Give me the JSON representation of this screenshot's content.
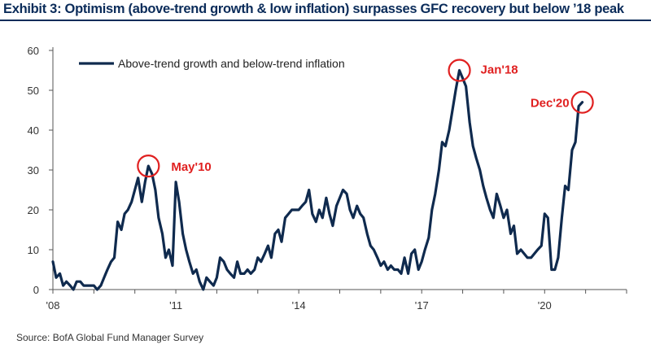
{
  "header": {
    "title": "Exhibit 3: Optimism (above-trend growth & low inflation) surpasses GFC recovery but below ’18 peak"
  },
  "footer": {
    "source": "Source: BofA Global Fund Manager Survey"
  },
  "colors": {
    "title": "#0b2c5a",
    "series": "#0f2a4e",
    "annotation": "#e02020",
    "axis": "#555555"
  },
  "chart_data": {
    "type": "line",
    "title": "Exhibit 3: Optimism (above-trend growth & low inflation) surpasses GFC recovery but below ’18 peak",
    "xlabel": "",
    "ylabel": "",
    "ylim": [
      0,
      60
    ],
    "xlim": [
      2008.0,
      2022.0
    ],
    "yticks": [
      0,
      10,
      20,
      30,
      40,
      50,
      60
    ],
    "xticks": [
      {
        "value": 2008,
        "label": "'08"
      },
      {
        "value": 2011,
        "label": "'11"
      },
      {
        "value": 2014,
        "label": "'14"
      },
      {
        "value": 2017,
        "label": "'17"
      },
      {
        "value": 2020,
        "label": "'20"
      }
    ],
    "legend": {
      "position": "top-left",
      "entries": [
        "Above-trend growth and below-trend inflation"
      ]
    },
    "grid": false,
    "series": [
      {
        "name": "Above-trend growth and below-trend inflation",
        "x": [
          2008.0,
          2008.08,
          2008.17,
          2008.25,
          2008.33,
          2008.42,
          2008.5,
          2008.58,
          2008.67,
          2008.75,
          2008.83,
          2008.92,
          2009.0,
          2009.08,
          2009.17,
          2009.25,
          2009.33,
          2009.42,
          2009.5,
          2009.58,
          2009.67,
          2009.75,
          2009.83,
          2009.92,
          2010.0,
          2010.08,
          2010.17,
          2010.25,
          2010.33,
          2010.42,
          2010.5,
          2010.58,
          2010.67,
          2010.75,
          2010.83,
          2010.92,
          2011.0,
          2011.08,
          2011.17,
          2011.25,
          2011.33,
          2011.42,
          2011.5,
          2011.58,
          2011.67,
          2011.75,
          2011.83,
          2011.92,
          2012.0,
          2012.08,
          2012.17,
          2012.25,
          2012.33,
          2012.42,
          2012.5,
          2012.58,
          2012.67,
          2012.75,
          2012.83,
          2012.92,
          2013.0,
          2013.08,
          2013.17,
          2013.25,
          2013.33,
          2013.42,
          2013.5,
          2013.58,
          2013.67,
          2013.75,
          2013.83,
          2013.92,
          2014.0,
          2014.08,
          2014.17,
          2014.25,
          2014.33,
          2014.42,
          2014.5,
          2014.58,
          2014.67,
          2014.75,
          2014.83,
          2014.92,
          2015.0,
          2015.08,
          2015.17,
          2015.25,
          2015.33,
          2015.42,
          2015.5,
          2015.58,
          2015.67,
          2015.75,
          2015.83,
          2015.92,
          2016.0,
          2016.08,
          2016.17,
          2016.25,
          2016.33,
          2016.42,
          2016.5,
          2016.58,
          2016.67,
          2016.75,
          2016.83,
          2016.92,
          2017.0,
          2017.08,
          2017.17,
          2017.25,
          2017.33,
          2017.42,
          2017.5,
          2017.58,
          2017.67,
          2017.75,
          2017.83,
          2017.92,
          2018.0,
          2018.08,
          2018.17,
          2018.25,
          2018.33,
          2018.42,
          2018.5,
          2018.58,
          2018.67,
          2018.75,
          2018.83,
          2018.92,
          2019.0,
          2019.08,
          2019.17,
          2019.25,
          2019.33,
          2019.42,
          2019.5,
          2019.58,
          2019.67,
          2019.75,
          2019.83,
          2019.92,
          2020.0,
          2020.08,
          2020.17,
          2020.25,
          2020.33,
          2020.42,
          2020.5,
          2020.58,
          2020.67,
          2020.75,
          2020.83,
          2020.92
        ],
        "values": [
          7,
          3,
          4,
          1,
          2,
          1,
          0,
          2,
          2,
          1,
          1,
          1,
          1,
          0,
          1,
          3,
          5,
          7,
          8,
          17,
          15,
          19,
          20,
          22,
          25,
          28,
          22,
          27,
          31,
          29,
          25,
          18,
          14,
          8,
          10,
          6,
          27,
          22,
          14,
          10,
          7,
          4,
          5,
          2,
          0,
          3,
          2,
          1,
          3,
          8,
          7,
          5,
          4,
          3,
          7,
          4,
          4,
          5,
          4,
          5,
          8,
          7,
          9,
          11,
          8,
          14,
          15,
          12,
          18,
          19,
          20,
          20,
          20,
          21,
          22,
          25,
          19,
          17,
          20,
          18,
          23,
          19,
          16,
          21,
          23,
          25,
          24,
          20,
          18,
          21,
          19,
          18,
          14,
          11,
          10,
          8,
          6,
          7,
          5,
          6,
          5,
          5,
          4,
          8,
          4,
          9,
          10,
          5,
          7,
          10,
          13,
          20,
          24,
          30,
          37,
          36,
          40,
          45,
          50,
          55,
          53,
          51,
          42,
          36,
          33,
          30,
          26,
          23,
          20,
          18,
          24,
          21,
          18,
          20,
          14,
          16,
          9,
          10,
          9,
          8,
          8,
          9,
          10,
          11,
          19,
          18,
          5,
          5,
          8,
          18,
          26,
          25,
          35,
          37,
          46,
          47
        ]
      }
    ],
    "annotations": [
      {
        "label": "May'10",
        "x": 2010.33,
        "y": 31
      },
      {
        "label": "Jan'18",
        "x": 2017.92,
        "y": 55
      },
      {
        "label": "Dec'20",
        "x": 2020.92,
        "y": 47
      }
    ]
  }
}
